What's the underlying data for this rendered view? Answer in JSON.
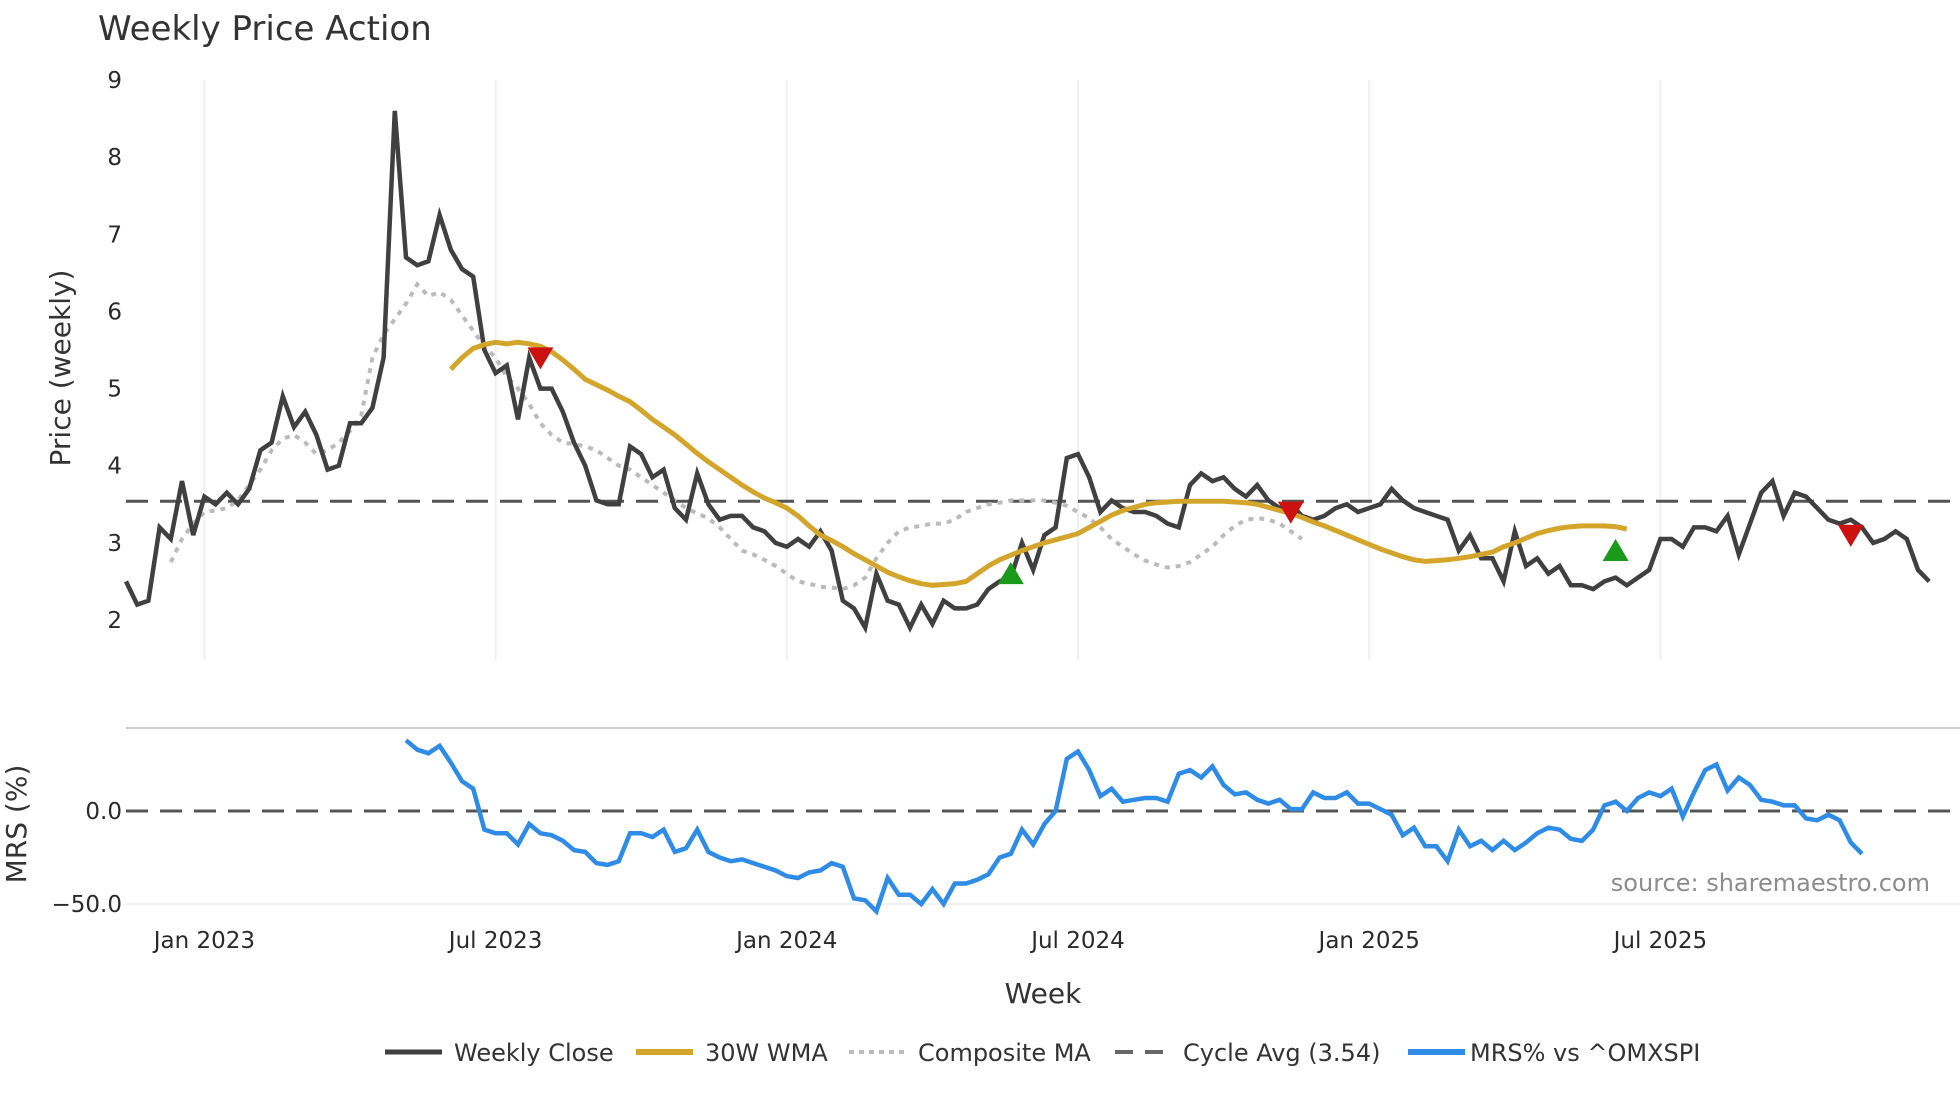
{
  "chart_data": {
    "type": "line",
    "title": "Weekly Price Action",
    "xlabel": "Week",
    "panels": [
      {
        "name": "price",
        "ylabel": "Price (weekly)",
        "ylim": [
          1.5,
          9
        ],
        "yticks": [
          2,
          3,
          4,
          5,
          6,
          7,
          8,
          9
        ]
      },
      {
        "name": "mrs",
        "ylabel": "MRS (%)",
        "ylim": [
          -55,
          45
        ],
        "yticks": [
          "0.0",
          "−50.0"
        ]
      }
    ],
    "xticks": [
      "Jan 2023",
      "Jul 2023",
      "Jan 2024",
      "Jul 2024",
      "Jan 2025",
      "Jul 2025"
    ],
    "xtick_weeks": [
      7,
      33,
      59,
      85,
      111,
      137
    ],
    "cycle_avg": 3.54,
    "source": "source: sharemaestro.com",
    "legend": [
      {
        "label": "Weekly Close",
        "color": "#404040",
        "style": "solid"
      },
      {
        "label": "30W WMA",
        "color": "#d4a52b",
        "style": "solid"
      },
      {
        "label": "Composite MA",
        "color": "#bbbbbb",
        "style": "dotted"
      },
      {
        "label": "Cycle Avg (3.54)",
        "color": "#555555",
        "style": "dashed"
      },
      {
        "label": "MRS% vs ^OMXSPI",
        "color": "#2e8ce6",
        "style": "solid"
      }
    ],
    "series": [
      {
        "name": "Weekly Close",
        "start_week": 0,
        "values": [
          2.5,
          2.2,
          2.25,
          3.2,
          3.05,
          3.8,
          3.1,
          3.6,
          3.5,
          3.65,
          3.5,
          3.7,
          4.2,
          4.3,
          4.9,
          4.5,
          4.7,
          4.4,
          3.95,
          4.0,
          4.55,
          4.55,
          4.75,
          5.4,
          8.6,
          6.7,
          6.6,
          6.65,
          7.25,
          6.8,
          6.55,
          6.45,
          5.5,
          5.2,
          5.3,
          4.6,
          5.4,
          5.0,
          5.0,
          4.7,
          4.3,
          4.0,
          3.55,
          3.5,
          3.5,
          4.25,
          4.15,
          3.85,
          3.95,
          3.45,
          3.3,
          3.9,
          3.5,
          3.3,
          3.35,
          3.35,
          3.2,
          3.15,
          3.0,
          2.95,
          3.05,
          2.95,
          3.15,
          2.9,
          2.25,
          2.15,
          1.9,
          2.6,
          2.25,
          2.2,
          1.9,
          2.2,
          1.95,
          2.25,
          2.15,
          2.15,
          2.2,
          2.4,
          2.5,
          2.55,
          3.0,
          2.65,
          3.1,
          3.2,
          4.1,
          4.15,
          3.85,
          3.4,
          3.55,
          3.45,
          3.4,
          3.4,
          3.35,
          3.25,
          3.2,
          3.75,
          3.9,
          3.8,
          3.85,
          3.7,
          3.6,
          3.75,
          3.55,
          3.45,
          3.5,
          3.35,
          3.3,
          3.35,
          3.45,
          3.5,
          3.4,
          3.45,
          3.5,
          3.7,
          3.55,
          3.45,
          3.4,
          3.35,
          3.3,
          2.9,
          3.1,
          2.8,
          2.8,
          2.5,
          3.15,
          2.7,
          2.8,
          2.6,
          2.7,
          2.45,
          2.45,
          2.4,
          2.5,
          2.55,
          2.45,
          2.55,
          2.65,
          3.05,
          3.05,
          2.95,
          3.2,
          3.2,
          3.15,
          3.35,
          2.85,
          3.25,
          3.65,
          3.8,
          3.35,
          3.65,
          3.6,
          3.45,
          3.3,
          3.25,
          3.3,
          3.2,
          3.0,
          3.05,
          3.15,
          3.05,
          2.65,
          2.5
        ]
      },
      {
        "name": "30W WMA",
        "start_week": 29,
        "values": [
          5.25,
          5.4,
          5.52,
          5.57,
          5.6,
          5.58,
          5.6,
          5.58,
          5.55,
          5.48,
          5.37,
          5.25,
          5.12,
          5.05,
          4.98,
          4.9,
          4.83,
          4.72,
          4.6,
          4.5,
          4.4,
          4.28,
          4.16,
          4.05,
          3.95,
          3.85,
          3.75,
          3.66,
          3.58,
          3.52,
          3.45,
          3.35,
          3.22,
          3.1,
          3.03,
          2.95,
          2.86,
          2.78,
          2.7,
          2.62,
          2.56,
          2.51,
          2.47,
          2.45,
          2.46,
          2.47,
          2.5,
          2.6,
          2.7,
          2.78,
          2.84,
          2.9,
          2.95,
          3.0,
          3.04,
          3.08,
          3.12,
          3.2,
          3.28,
          3.36,
          3.42,
          3.46,
          3.5,
          3.52,
          3.53,
          3.54,
          3.54,
          3.54,
          3.54,
          3.54,
          3.53,
          3.52,
          3.5,
          3.46,
          3.42,
          3.38,
          3.33,
          3.27,
          3.22,
          3.16,
          3.1,
          3.04,
          2.98,
          2.92,
          2.87,
          2.82,
          2.78,
          2.76,
          2.77,
          2.78,
          2.8,
          2.82,
          2.85,
          2.88,
          2.95,
          3.0,
          3.06,
          3.12,
          3.16,
          3.19,
          3.21,
          3.22,
          3.22,
          3.22,
          3.21,
          3.18
        ]
      },
      {
        "name": "Composite MA",
        "start_week": 4,
        "values": [
          2.75,
          3.05,
          3.25,
          3.4,
          3.42,
          3.45,
          3.55,
          3.75,
          3.95,
          4.2,
          4.35,
          4.4,
          4.3,
          4.15,
          4.2,
          4.3,
          4.45,
          4.65,
          5.4,
          5.7,
          5.9,
          6.1,
          6.35,
          6.2,
          6.25,
          6.15,
          5.95,
          5.75,
          5.55,
          5.4,
          5.15,
          5.0,
          4.8,
          4.55,
          4.4,
          4.3,
          4.28,
          4.25,
          4.2,
          4.1,
          4.0,
          3.95,
          3.85,
          3.75,
          3.65,
          3.55,
          3.45,
          3.38,
          3.32,
          3.2,
          3.05,
          2.9,
          2.85,
          2.78,
          2.7,
          2.6,
          2.5,
          2.47,
          2.43,
          2.42,
          2.4,
          2.45,
          2.55,
          2.8,
          3.0,
          3.15,
          3.2,
          3.22,
          3.25,
          3.25,
          3.3,
          3.4,
          3.45,
          3.5,
          3.52,
          3.55,
          3.55,
          3.55,
          3.55,
          3.52,
          3.48,
          3.4,
          3.32,
          3.2,
          3.05,
          2.95,
          2.85,
          2.77,
          2.72,
          2.68,
          2.7,
          2.75,
          2.85,
          2.95,
          3.1,
          3.22,
          3.3,
          3.32,
          3.3,
          3.25,
          3.15,
          3.05
        ]
      },
      {
        "name": "MRS% vs ^OMXSPI",
        "start_week": 25,
        "values": [
          38,
          33,
          31,
          35,
          26,
          16,
          12,
          -10,
          -12,
          -12,
          -18,
          -7,
          -12,
          -13,
          -16,
          -21,
          -22,
          -28,
          -29,
          -27,
          -12,
          -12,
          -14,
          -10,
          -22,
          -20,
          -10,
          -22,
          -25,
          -27,
          -26,
          -28,
          -30,
          -32,
          -35,
          -36,
          -33,
          -32,
          -28,
          -30,
          -47,
          -48,
          -54,
          -36,
          -45,
          -45,
          -50,
          -42,
          -50,
          -39,
          -39,
          -37,
          -34,
          -25,
          -23,
          -10,
          -18,
          -7,
          0,
          28,
          32,
          22,
          8,
          12,
          5,
          6,
          7,
          7,
          5,
          20,
          22,
          18,
          24,
          14,
          9,
          10,
          6,
          4,
          6,
          1,
          1,
          10,
          7,
          7,
          10,
          4,
          4,
          1,
          -2,
          -13,
          -9,
          -19,
          -19,
          -27,
          -10,
          -19,
          -16,
          -21,
          -16,
          -21,
          -17,
          -12,
          -9,
          -10,
          -15,
          -16,
          -10,
          3,
          5,
          0,
          7,
          10,
          8,
          12,
          -3,
          10,
          22,
          25,
          11,
          18,
          14,
          6,
          5,
          3,
          3,
          -4,
          -5,
          -2,
          -5,
          -17,
          -23
        ]
      }
    ],
    "markers": [
      {
        "type": "sell",
        "shape": "triangle-down",
        "color": "#cc1111",
        "week": 37,
        "value": 5.4
      },
      {
        "type": "buy",
        "shape": "triangle-up",
        "color": "#1a9a1a",
        "week": 79,
        "value": 2.6
      },
      {
        "type": "sell",
        "shape": "triangle-down",
        "color": "#cc1111",
        "week": 104,
        "value": 3.4
      },
      {
        "type": "buy",
        "shape": "triangle-up",
        "color": "#1a9a1a",
        "week": 133,
        "value": 2.9
      },
      {
        "type": "sell",
        "shape": "triangle-down",
        "color": "#cc1111",
        "week": 154,
        "value": 3.1
      }
    ]
  },
  "header": {
    "title": "Weekly Price Action"
  },
  "axes": {
    "price_ylabel": "Price (weekly)",
    "mrs_ylabel": "MRS (%)",
    "xlabel": "Week",
    "mrs_tick_zero": "0.0",
    "mrs_tick_neg50": "−50.0"
  },
  "legend": {
    "weekly_close": "Weekly Close",
    "wma": "30W WMA",
    "composite": "Composite MA",
    "cycle": "Cycle Avg (3.54)",
    "mrs": "MRS% vs ^OMXSPI"
  },
  "source": "source: sharemaestro.com"
}
